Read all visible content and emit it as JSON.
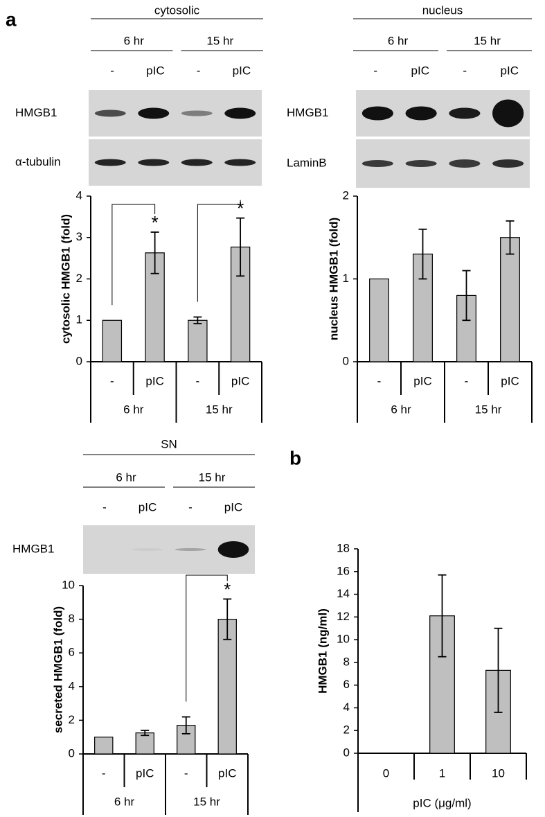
{
  "panels": [
    "a",
    "b"
  ],
  "chart_data": [
    {
      "type": "bar",
      "header": "cytosolic",
      "groups": [
        "6 hr",
        "15 hr"
      ],
      "categories": [
        "-",
        "pIC",
        "-",
        "pIC"
      ],
      "blot_rows": [
        "HMGB1",
        "α-tubulin"
      ],
      "ylabel": "cytosolic HMGB1 (fold)",
      "values": [
        1,
        2.63,
        1.0,
        2.77
      ],
      "errors": [
        null,
        0.5,
        0.08,
        0.7
      ],
      "significance": [
        null,
        "*",
        null,
        "*"
      ],
      "ylim": [
        0,
        4
      ],
      "yticks": [
        0,
        1,
        2,
        3,
        4
      ],
      "color": "#bfbfbf"
    },
    {
      "type": "bar",
      "header": "nucleus",
      "groups": [
        "6 hr",
        "15 hr"
      ],
      "categories": [
        "-",
        "pIC",
        "-",
        "pIC"
      ],
      "blot_rows": [
        "HMGB1",
        "LaminB"
      ],
      "ylabel": "nucleus HMGB1 (fold)",
      "values": [
        1,
        1.3,
        0.8,
        1.5
      ],
      "errors": [
        null,
        0.3,
        0.3,
        0.2
      ],
      "significance": [
        null,
        null,
        null,
        null
      ],
      "ylim": [
        0,
        2
      ],
      "yticks": [
        0,
        1,
        2
      ],
      "color": "#bfbfbf"
    },
    {
      "type": "bar",
      "header": "SN",
      "groups": [
        "6 hr",
        "15 hr"
      ],
      "categories": [
        "-",
        "pIC",
        "-",
        "pIC"
      ],
      "blot_rows": [
        "HMGB1"
      ],
      "ylabel": "secreted HMGB1 (fold)",
      "values": [
        1,
        1.25,
        1.7,
        8.0
      ],
      "errors": [
        null,
        0.15,
        0.5,
        1.2
      ],
      "significance": [
        null,
        null,
        null,
        "*"
      ],
      "ylim": [
        0,
        10
      ],
      "yticks": [
        0,
        2,
        4,
        6,
        8,
        10
      ],
      "color": "#bfbfbf"
    },
    {
      "type": "bar",
      "categories": [
        "0",
        "1",
        "10"
      ],
      "xlabel": "pIC (μg/ml)",
      "ylabel": "HMGB1 (ng/ml)",
      "values": [
        0,
        12.1,
        7.3
      ],
      "errors": [
        null,
        3.6,
        3.7
      ],
      "ylim": [
        0,
        18
      ],
      "yticks": [
        0,
        2,
        4,
        6,
        8,
        10,
        12,
        14,
        16,
        18
      ],
      "color": "#bfbfbf"
    }
  ]
}
